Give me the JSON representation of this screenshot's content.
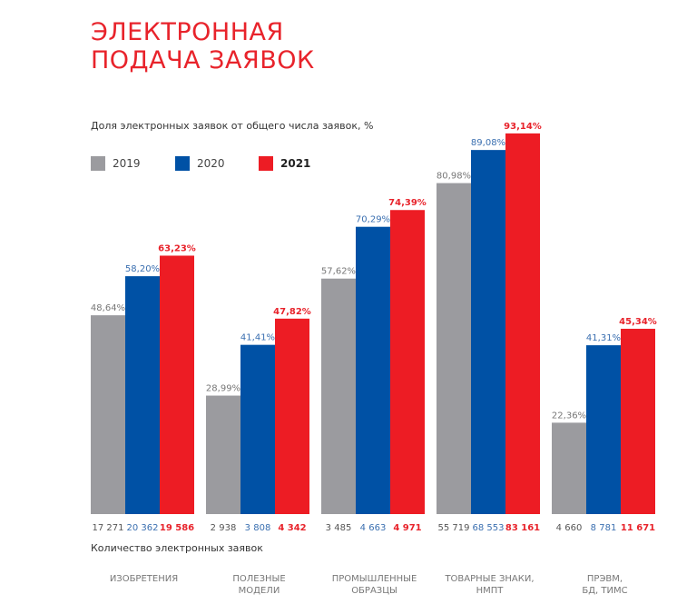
{
  "chart_data": {
    "type": "bar",
    "title": "ЭЛЕКТРОННАЯ ПОДАЧА ЗАЯВОК",
    "subtitle": "Доля электронных заявок от общего числа заявок, %",
    "counts_label": "Количество электронных заявок",
    "categories": [
      "ИЗОБРЕТЕНИЯ",
      "ПОЛЕЗНЫЕ\nМОДЕЛИ",
      "ПРОМЫШЛЕННЫЕ\nОБРАЗЦЫ",
      "ТОВАРНЫЕ ЗНАКИ,\nНМПТ",
      "ПРЭВМ,\nБД, ТИМС"
    ],
    "series": [
      {
        "name": "2019",
        "color": "#9b9b9f",
        "label_color": "#777777",
        "values": [
          48.64,
          28.99,
          57.62,
          80.98,
          22.36
        ],
        "labels": [
          "48,64%",
          "28,99%",
          "57,62%",
          "80,98%",
          "22,36%"
        ],
        "counts": [
          "17 271",
          "2 938",
          "3 485",
          "55 719",
          "4 660"
        ]
      },
      {
        "name": "2020",
        "color": "#0051a5",
        "label_color": "#3a6fb0",
        "values": [
          58.2,
          41.41,
          70.29,
          89.08,
          41.31
        ],
        "labels": [
          "58,20%",
          "41,41%",
          "70,29%",
          "89,08%",
          "41,31%"
        ],
        "counts": [
          "20 362",
          "3 808",
          "4 663",
          "68 553",
          "8 781"
        ]
      },
      {
        "name": "2021",
        "color": "#ed1c24",
        "label_color": "#e8232b",
        "values": [
          63.23,
          47.82,
          74.39,
          93.14,
          45.34
        ],
        "labels": [
          "63,23%",
          "47,82%",
          "74,39%",
          "93,14%",
          "45,34%"
        ],
        "counts": [
          "19 586",
          "4 342",
          "4 971",
          "83 161",
          "11 671"
        ]
      }
    ],
    "ylim": [
      0,
      100
    ],
    "grid": false,
    "legend_placement": "top-left"
  }
}
